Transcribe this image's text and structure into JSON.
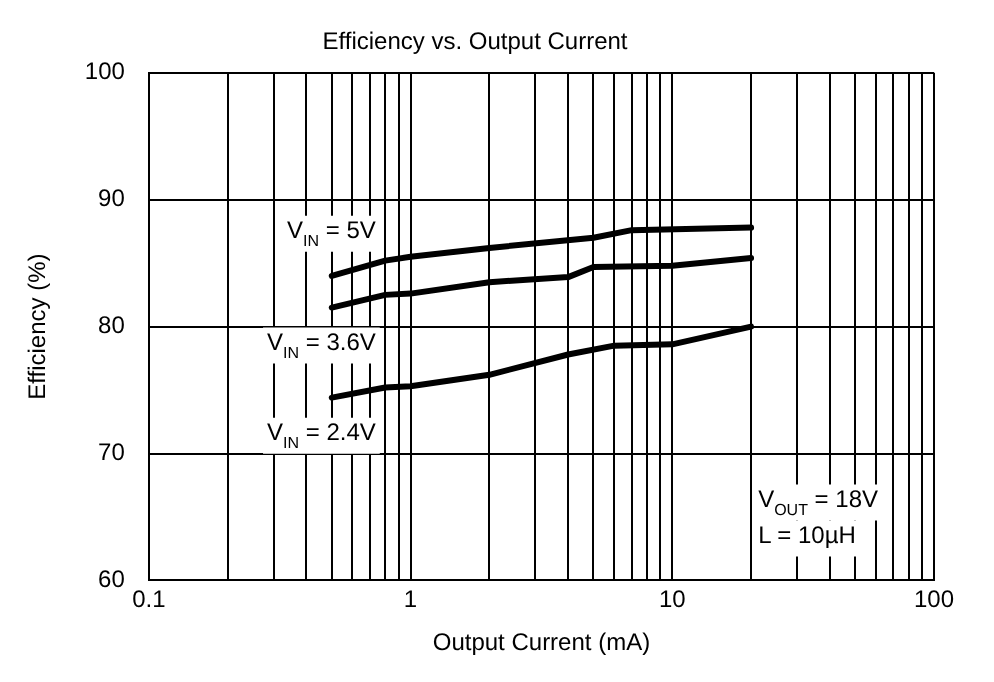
{
  "chart_data": {
    "type": "line",
    "title": "Efficiency vs. Output Current",
    "xlabel": "Output Current (mA)",
    "ylabel": "Efficiency (%)",
    "log": "x",
    "xlim": [
      0.1,
      100
    ],
    "ylim": [
      60,
      100
    ],
    "xticks": [
      0.1,
      {
        "value": 0.2,
        "label": null
      },
      {
        "value": 0.3,
        "label": null
      },
      {
        "value": 0.4,
        "label": null
      },
      {
        "value": 0.5,
        "label": null
      },
      {
        "value": 0.6,
        "label": null
      },
      {
        "value": 0.7,
        "label": null
      },
      {
        "value": 0.8,
        "label": null
      },
      {
        "value": 0.9,
        "label": null
      },
      1,
      {
        "value": 2,
        "label": null
      },
      {
        "value": 3,
        "label": null
      },
      {
        "value": 4,
        "label": null
      },
      {
        "value": 5,
        "label": null
      },
      {
        "value": 6,
        "label": null
      },
      {
        "value": 7,
        "label": null
      },
      {
        "value": 8,
        "label": null
      },
      {
        "value": 9,
        "label": null
      },
      10,
      {
        "value": 20,
        "label": null
      },
      {
        "value": 30,
        "label": null
      },
      {
        "value": 40,
        "label": null
      },
      {
        "value": 50,
        "label": null
      },
      {
        "value": 60,
        "label": null
      },
      {
        "value": 70,
        "label": null
      },
      {
        "value": 80,
        "label": null
      },
      {
        "value": 90,
        "label": null
      },
      100
    ],
    "yticks": [
      60,
      70,
      80,
      90,
      100
    ],
    "grid": true,
    "legend": false,
    "marker": "none",
    "line_style": "solid",
    "series": [
      {
        "name": "V$_{IN}$ = 5V",
        "color": "#000000",
        "x": [
          0.5,
          0.8,
          1,
          2,
          5,
          7,
          20
        ],
        "values": [
          84,
          85.2,
          85.5,
          86.2,
          87,
          87.6,
          87.8
        ]
      },
      {
        "name": "V$_{IN}$ = 3.6V",
        "color": "#000000",
        "x": [
          0.5,
          0.8,
          1,
          2,
          4,
          5,
          10,
          20
        ],
        "values": [
          81.5,
          82.5,
          82.6,
          83.5,
          83.9,
          84.7,
          84.8,
          85.4
        ]
      },
      {
        "name": "V$_{IN}$ = 2.4V",
        "color": "#000000",
        "x": [
          0.5,
          0.8,
          1,
          2,
          4,
          6,
          10,
          20
        ],
        "values": [
          74.4,
          75.2,
          75.3,
          76.2,
          77.8,
          78.5,
          78.6,
          80
        ]
      }
    ],
    "annotations": [
      "V$_{OUT}$ = 18V",
      "L = 10µH"
    ]
  }
}
